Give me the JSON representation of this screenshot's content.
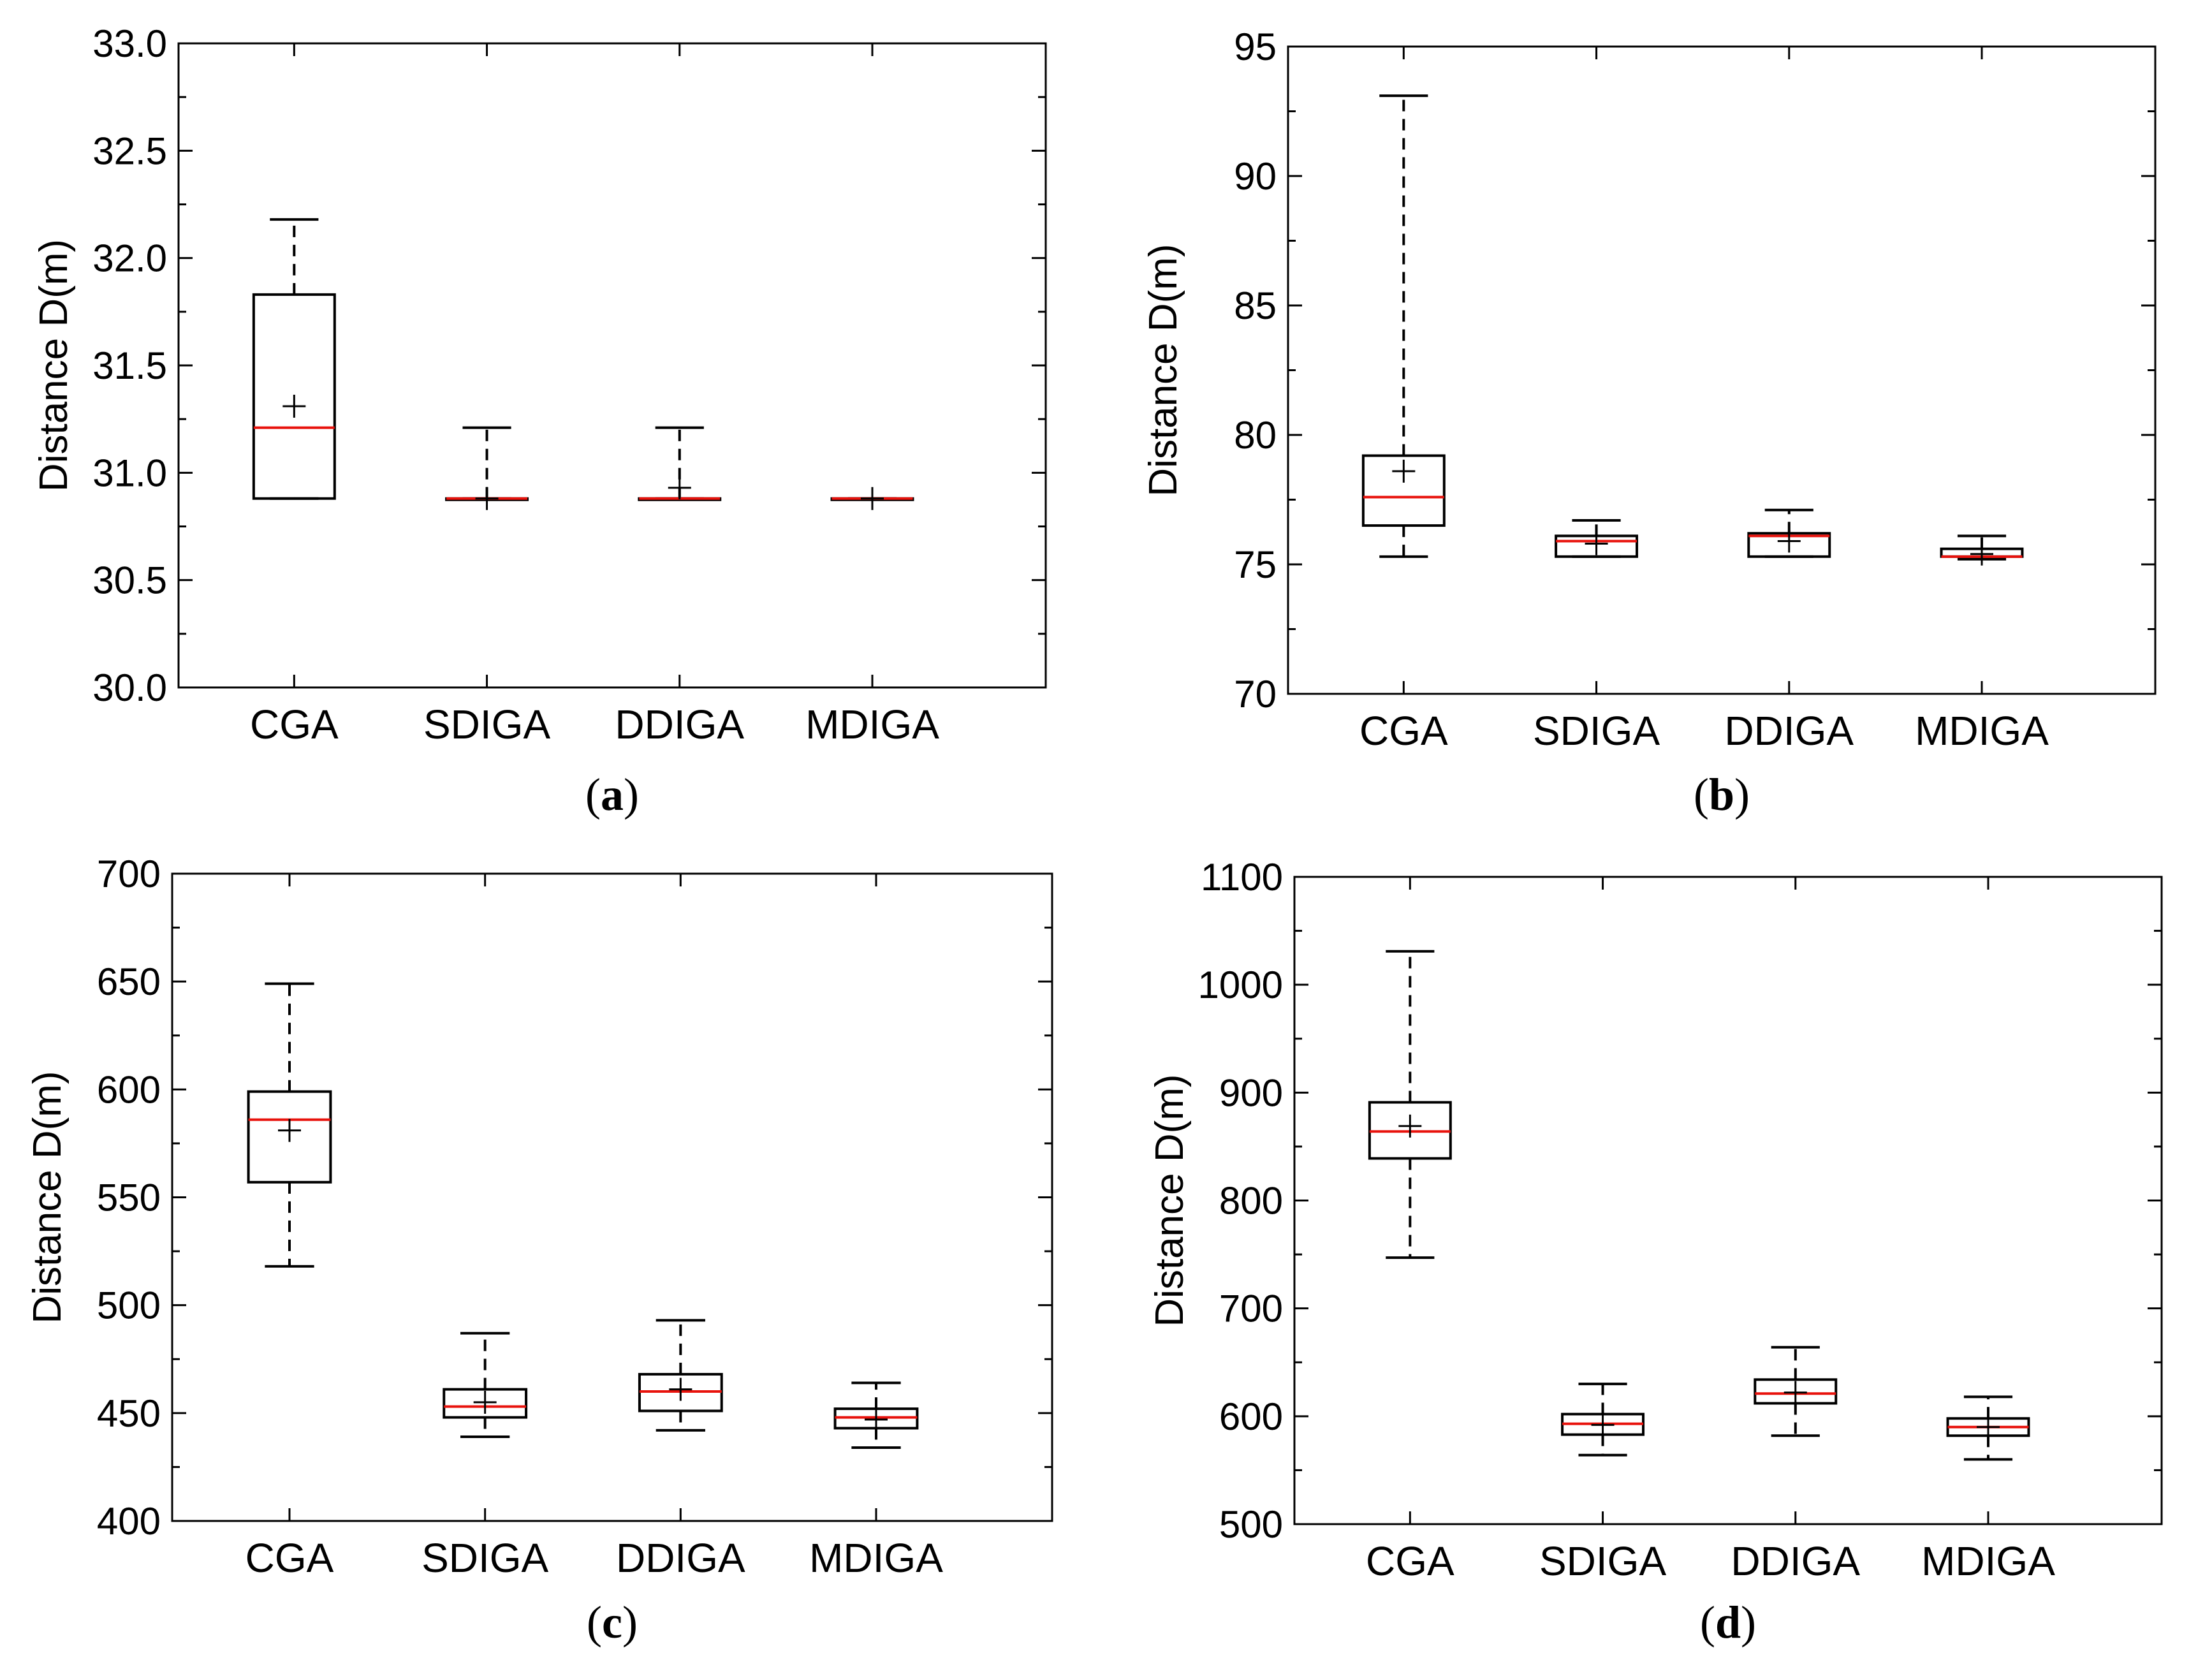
{
  "chart_data": [
    {
      "type": "box",
      "panel": "a",
      "caption": "(a)",
      "caption_parts": [
        "(",
        "a",
        ")"
      ],
      "ylabel": "Distance D(m)",
      "ylim": [
        30.0,
        33.0
      ],
      "yticks": [
        "30.0",
        "30.5",
        "31.0",
        "31.5",
        "32.0",
        "32.5",
        "33.0"
      ],
      "ytick_values": [
        30.0,
        30.5,
        31.0,
        31.5,
        32.0,
        32.5,
        33.0
      ],
      "categories": [
        "CGA",
        "SDIGA",
        "DDIGA",
        "MDIGA"
      ],
      "boxes": [
        {
          "min": 30.88,
          "q1": 30.88,
          "median": 31.21,
          "q3": 31.83,
          "max": 32.18,
          "mean": 31.31
        },
        {
          "min": 30.88,
          "q1": 30.88,
          "median": 30.88,
          "q3": 30.88,
          "max": 31.21,
          "mean": 30.88
        },
        {
          "min": 30.88,
          "q1": 30.88,
          "median": 30.88,
          "q3": 30.88,
          "max": 31.21,
          "mean": 30.93
        },
        {
          "min": 30.88,
          "q1": 30.88,
          "median": 30.88,
          "q3": 30.88,
          "max": 30.88,
          "mean": 30.88
        }
      ]
    },
    {
      "type": "box",
      "panel": "b",
      "caption": "(b)",
      "caption_parts": [
        "(",
        "b",
        ")"
      ],
      "ylabel": "Distance D(m)",
      "ylim": [
        70,
        95
      ],
      "yticks": [
        "70",
        "75",
        "80",
        "85",
        "90",
        "95"
      ],
      "ytick_values": [
        70,
        75,
        80,
        85,
        90,
        95
      ],
      "categories": [
        "CGA",
        "SDIGA",
        "DDIGA",
        "MDIGA"
      ],
      "boxes": [
        {
          "min": 75.3,
          "q1": 76.5,
          "median": 77.6,
          "q3": 79.2,
          "max": 93.1,
          "mean": 78.6
        },
        {
          "min": 75.3,
          "q1": 75.3,
          "median": 75.9,
          "q3": 76.1,
          "max": 76.7,
          "mean": 75.8
        },
        {
          "min": 75.3,
          "q1": 75.3,
          "median": 76.1,
          "q3": 76.2,
          "max": 77.1,
          "mean": 75.9
        },
        {
          "min": 75.2,
          "q1": 75.3,
          "median": 75.3,
          "q3": 75.6,
          "max": 76.1,
          "mean": 75.4
        }
      ]
    },
    {
      "type": "box",
      "panel": "c",
      "caption": "(c)",
      "caption_parts": [
        "(",
        "c",
        ")"
      ],
      "ylabel": "Distance D(m)",
      "ylim": [
        400,
        700
      ],
      "yticks": [
        "400",
        "450",
        "500",
        "550",
        "600",
        "650",
        "700"
      ],
      "ytick_values": [
        400,
        450,
        500,
        550,
        600,
        650,
        700
      ],
      "categories": [
        "CGA",
        "SDIGA",
        "DDIGA",
        "MDIGA"
      ],
      "boxes": [
        {
          "min": 518,
          "q1": 557,
          "median": 586,
          "q3": 599,
          "max": 649,
          "mean": 581
        },
        {
          "min": 439,
          "q1": 448,
          "median": 453,
          "q3": 461,
          "max": 487,
          "mean": 455
        },
        {
          "min": 442,
          "q1": 451,
          "median": 460,
          "q3": 468,
          "max": 493,
          "mean": 461
        },
        {
          "min": 434,
          "q1": 443,
          "median": 448,
          "q3": 452,
          "max": 464,
          "mean": 447
        }
      ]
    },
    {
      "type": "box",
      "panel": "d",
      "caption": "(d)",
      "caption_parts": [
        "(",
        "d",
        ")"
      ],
      "ylabel": "Distance D(m)",
      "ylim": [
        500,
        1100
      ],
      "yticks": [
        "500",
        "600",
        "700",
        "800",
        "900",
        "1000",
        "1100"
      ],
      "ytick_values": [
        500,
        600,
        700,
        800,
        900,
        1000,
        1100
      ],
      "categories": [
        "CGA",
        "SDIGA",
        "DDIGA",
        "MDIGA"
      ],
      "boxes": [
        {
          "min": 747,
          "q1": 839,
          "median": 864,
          "q3": 891,
          "max": 1031,
          "mean": 869
        },
        {
          "min": 564,
          "q1": 583,
          "median": 593,
          "q3": 602,
          "max": 630,
          "mean": 592
        },
        {
          "min": 582,
          "q1": 612,
          "median": 621,
          "q3": 634,
          "max": 664,
          "mean": 622
        },
        {
          "min": 560,
          "q1": 582,
          "median": 590,
          "q3": 598,
          "max": 618,
          "mean": 590
        }
      ]
    }
  ]
}
